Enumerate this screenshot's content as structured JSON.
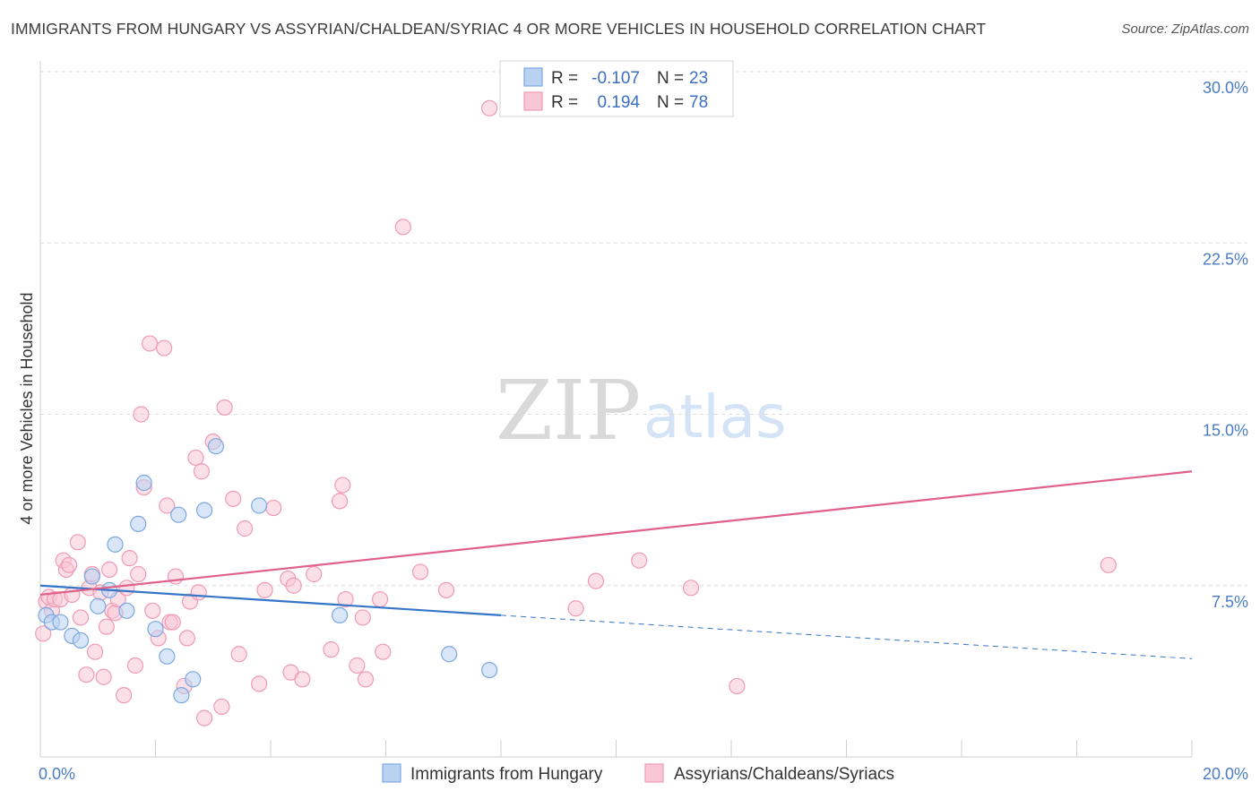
{
  "title": "IMMIGRANTS FROM HUNGARY VS ASSYRIAN/CHALDEAN/SYRIAC 4 OR MORE VEHICLES IN HOUSEHOLD CORRELATION CHART",
  "source": "Source: ZipAtlas.com",
  "watermark": {
    "zip": "ZIP",
    "atlas": "atlas"
  },
  "legend_top": {
    "r_label": "R =",
    "n_label": "N =",
    "rows": [
      {
        "r": "-0.107",
        "n": "23"
      },
      {
        "r": "0.194",
        "n": "78"
      }
    ]
  },
  "chart_data": {
    "type": "scatter",
    "title": "IMMIGRANTS FROM HUNGARY VS ASSYRIAN/CHALDEAN/SYRIAC 4 OR MORE VEHICLES IN HOUSEHOLD CORRELATION CHART",
    "xlabel": "",
    "ylabel": "4 or more Vehicles in Household",
    "xlim": [
      0,
      20
    ],
    "ylim": [
      0,
      30
    ],
    "x_tick_labels": [
      "0.0%",
      "20.0%"
    ],
    "y_ticks": [
      7.5,
      15,
      22.5,
      30
    ],
    "y_tick_labels": [
      "7.5%",
      "15.0%",
      "22.5%",
      "30.0%"
    ],
    "series": [
      {
        "name": "Immigrants from Hungary",
        "color": "#7ba7e0",
        "fill": "#b9d2f2",
        "line_color": "#3575c8",
        "trend": {
          "x0": 0,
          "y0": 7.5,
          "x1": 8.0,
          "y1": 6.2,
          "dash_to_x": 20,
          "dash_to_y": 4.3
        },
        "points": [
          [
            0.1,
            6.2
          ],
          [
            0.2,
            5.9
          ],
          [
            0.35,
            5.9
          ],
          [
            0.55,
            5.3
          ],
          [
            0.7,
            5.1
          ],
          [
            0.9,
            7.9
          ],
          [
            1.0,
            6.6
          ],
          [
            1.2,
            7.3
          ],
          [
            1.3,
            9.3
          ],
          [
            1.5,
            6.4
          ],
          [
            1.7,
            10.2
          ],
          [
            1.8,
            12.0
          ],
          [
            2.0,
            5.6
          ],
          [
            2.2,
            4.4
          ],
          [
            2.4,
            10.6
          ],
          [
            2.45,
            2.7
          ],
          [
            2.65,
            3.4
          ],
          [
            2.85,
            10.8
          ],
          [
            3.05,
            13.6
          ],
          [
            3.8,
            11.0
          ],
          [
            5.2,
            6.2
          ],
          [
            7.1,
            4.5
          ],
          [
            7.8,
            3.8
          ]
        ]
      },
      {
        "name": "Assyrians/Chaldeans/Syriacs",
        "color": "#f09ab5",
        "fill": "#f8c6d5",
        "line_color": "#e0608a",
        "trend": {
          "x0": 0,
          "y0": 7.1,
          "x1": 20,
          "y1": 12.5
        },
        "points": [
          [
            0.05,
            5.4
          ],
          [
            0.1,
            6.8
          ],
          [
            0.15,
            7.0
          ],
          [
            0.2,
            6.4
          ],
          [
            0.25,
            6.9
          ],
          [
            0.35,
            6.9
          ],
          [
            0.4,
            8.6
          ],
          [
            0.45,
            8.2
          ],
          [
            0.55,
            7.1
          ],
          [
            0.5,
            8.4
          ],
          [
            0.65,
            9.4
          ],
          [
            0.7,
            6.1
          ],
          [
            0.8,
            3.6
          ],
          [
            0.85,
            7.4
          ],
          [
            0.9,
            8.0
          ],
          [
            0.95,
            4.6
          ],
          [
            1.05,
            7.2
          ],
          [
            1.1,
            3.5
          ],
          [
            1.15,
            5.7
          ],
          [
            1.2,
            8.2
          ],
          [
            1.25,
            6.4
          ],
          [
            1.3,
            6.3
          ],
          [
            1.35,
            6.9
          ],
          [
            1.45,
            2.7
          ],
          [
            1.5,
            7.4
          ],
          [
            1.55,
            8.7
          ],
          [
            1.65,
            4.0
          ],
          [
            1.7,
            8.0
          ],
          [
            1.75,
            15.0
          ],
          [
            1.8,
            11.8
          ],
          [
            1.9,
            18.1
          ],
          [
            1.95,
            6.4
          ],
          [
            2.05,
            5.2
          ],
          [
            2.15,
            17.9
          ],
          [
            2.2,
            11.0
          ],
          [
            2.25,
            5.9
          ],
          [
            2.3,
            5.9
          ],
          [
            2.35,
            7.9
          ],
          [
            2.5,
            3.1
          ],
          [
            2.55,
            5.2
          ],
          [
            2.6,
            6.8
          ],
          [
            2.7,
            13.1
          ],
          [
            2.75,
            7.2
          ],
          [
            2.8,
            12.5
          ],
          [
            2.85,
            1.7
          ],
          [
            3.0,
            13.8
          ],
          [
            3.15,
            2.2
          ],
          [
            3.2,
            15.3
          ],
          [
            3.35,
            11.3
          ],
          [
            3.45,
            4.5
          ],
          [
            3.55,
            10.0
          ],
          [
            3.8,
            3.2
          ],
          [
            3.9,
            7.3
          ],
          [
            4.05,
            10.9
          ],
          [
            4.3,
            7.8
          ],
          [
            4.35,
            3.7
          ],
          [
            4.4,
            7.5
          ],
          [
            4.55,
            3.4
          ],
          [
            4.75,
            8.0
          ],
          [
            5.05,
            4.7
          ],
          [
            5.2,
            11.2
          ],
          [
            5.25,
            11.9
          ],
          [
            5.3,
            6.9
          ],
          [
            5.5,
            4.0
          ],
          [
            5.6,
            6.1
          ],
          [
            5.65,
            3.4
          ],
          [
            5.9,
            6.9
          ],
          [
            5.95,
            4.6
          ],
          [
            6.3,
            23.2
          ],
          [
            6.6,
            8.1
          ],
          [
            7.05,
            7.3
          ],
          [
            7.8,
            28.4
          ],
          [
            9.3,
            6.5
          ],
          [
            9.65,
            7.7
          ],
          [
            10.4,
            8.6
          ],
          [
            11.3,
            7.4
          ],
          [
            12.1,
            3.1
          ],
          [
            18.55,
            8.4
          ]
        ]
      }
    ]
  }
}
